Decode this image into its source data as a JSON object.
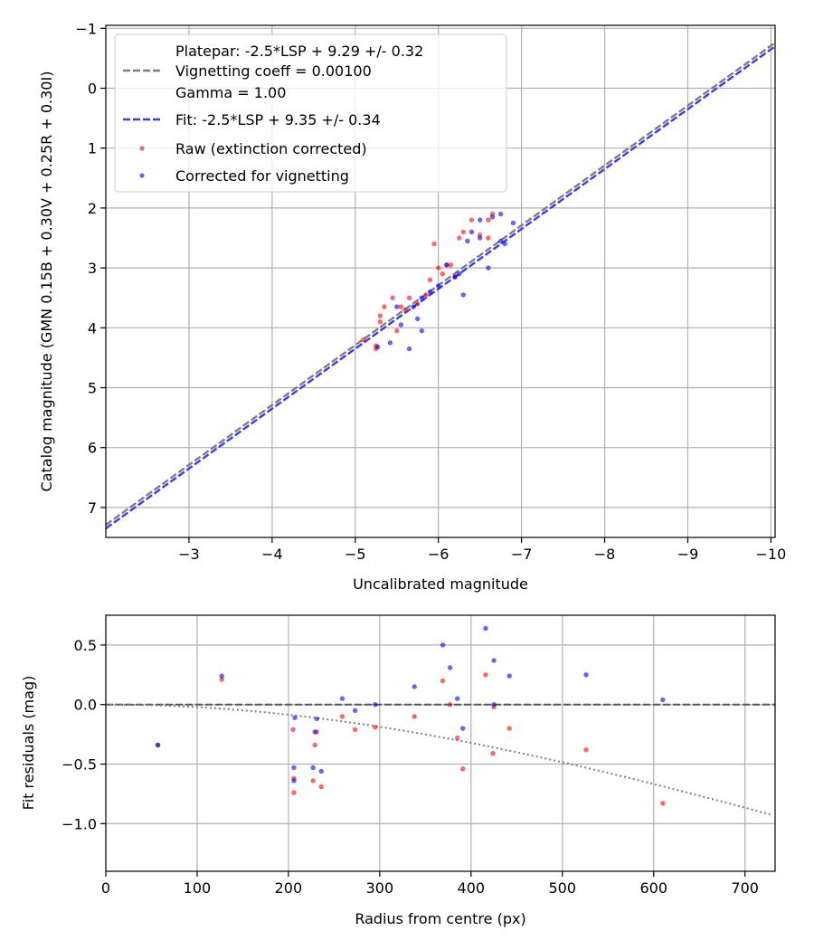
{
  "chart_data": [
    {
      "type": "scatter",
      "xlabel": "Uncalibrated magnitude",
      "ylabel": "Catalog magnitude (GMN 0.15B + 0.30V + 0.25R + 0.30I)",
      "xlim": [
        -2.0,
        -10.05
      ],
      "ylim": [
        7.5,
        -1.05
      ],
      "x_inverted": true,
      "y_inverted": true,
      "xticks": [
        -3,
        -4,
        -5,
        -6,
        -7,
        -8,
        -9,
        -10
      ],
      "xtick_labels": [
        "−3",
        "−4",
        "−5",
        "−6",
        "−7",
        "−8",
        "−9",
        "−10"
      ],
      "yticks": [
        -1,
        0,
        1,
        2,
        3,
        4,
        5,
        6,
        7
      ],
      "ytick_labels": [
        "−1",
        "0",
        "1",
        "2",
        "3",
        "4",
        "5",
        "6",
        "7"
      ],
      "grid": true,
      "legend_position": "upper left",
      "legend": [
        {
          "label": "Platepar: -2.5*LSP + 9.29 +/- 0.32",
          "kind": "blank"
        },
        {
          "label": "Vignetting coeff = 0.00100",
          "kind": "gray-dashed"
        },
        {
          "label": "Gamma = 1.00",
          "kind": "blank"
        },
        {
          "label": "Fit: -2.5*LSP + 9.35 +/- 0.34",
          "kind": "blue-dashed"
        },
        {
          "label": "Raw (extinction corrected)",
          "kind": "red-dot"
        },
        {
          "label": "Corrected for vignetting",
          "kind": "blue-dot"
        }
      ],
      "lines": [
        {
          "style": "gray-dashed",
          "intercept": 9.29,
          "slope": 1.0
        },
        {
          "style": "blue-dashed",
          "intercept": 9.35,
          "slope": 1.0
        }
      ],
      "series": [
        {
          "name": "Raw (extinction corrected)",
          "color": "#ff0000",
          "points": [
            [
              -5.1,
              4.2
            ],
            [
              -5.25,
              4.35
            ],
            [
              -5.3,
              3.9
            ],
            [
              -5.3,
              3.8
            ],
            [
              -5.35,
              3.65
            ],
            [
              -5.45,
              3.5
            ],
            [
              -5.5,
              4.05
            ],
            [
              -5.6,
              3.7
            ],
            [
              -5.65,
              3.5
            ],
            [
              -5.75,
              3.6
            ],
            [
              -5.85,
              3.45
            ],
            [
              -5.9,
              3.2
            ],
            [
              -5.95,
              2.6
            ],
            [
              -6.0,
              3.0
            ],
            [
              -6.05,
              3.1
            ],
            [
              -6.1,
              2.95
            ],
            [
              -6.15,
              2.95
            ],
            [
              -6.25,
              2.5
            ],
            [
              -6.3,
              2.4
            ],
            [
              -6.4,
              2.2
            ],
            [
              -6.5,
              2.45
            ],
            [
              -6.6,
              2.5
            ],
            [
              -6.6,
              2.2
            ],
            [
              -6.65,
              2.1
            ],
            [
              -5.25,
              4.3
            ],
            [
              -5.55,
              3.65
            ],
            [
              -6.2,
              3.15
            ]
          ]
        },
        {
          "name": "Corrected for vignetting",
          "color": "#0000ff",
          "points": [
            [
              -5.27,
              4.32
            ],
            [
              -5.42,
              4.25
            ],
            [
              -5.5,
              3.65
            ],
            [
              -5.55,
              3.95
            ],
            [
              -5.65,
              4.35
            ],
            [
              -5.7,
              3.65
            ],
            [
              -5.75,
              3.85
            ],
            [
              -5.8,
              4.05
            ],
            [
              -5.8,
              3.5
            ],
            [
              -5.9,
              3.4
            ],
            [
              -6.1,
              2.95
            ],
            [
              -6.2,
              3.15
            ],
            [
              -6.25,
              3.1
            ],
            [
              -6.3,
              3.45
            ],
            [
              -6.35,
              2.55
            ],
            [
              -6.4,
              2.4
            ],
            [
              -6.5,
              2.2
            ],
            [
              -6.6,
              3.0
            ],
            [
              -6.65,
              2.15
            ],
            [
              -6.75,
              2.1
            ],
            [
              -6.75,
              2.55
            ],
            [
              -6.8,
              2.6
            ],
            [
              -6.9,
              2.25
            ],
            [
              -6.5,
              2.5
            ],
            [
              -6.0,
              3.3
            ]
          ]
        }
      ]
    },
    {
      "type": "scatter",
      "xlabel": "Radius from centre (px)",
      "ylabel": "Fit residuals (mag)",
      "xlim": [
        0,
        733
      ],
      "ylim": [
        -1.4,
        0.75
      ],
      "xticks": [
        0,
        100,
        200,
        300,
        400,
        500,
        600,
        700
      ],
      "xtick_labels": [
        "0",
        "100",
        "200",
        "300",
        "400",
        "500",
        "600",
        "700"
      ],
      "yticks": [
        0.5,
        0.0,
        -0.5,
        -1.0
      ],
      "ytick_labels": [
        "0.5",
        "0.0",
        "−0.5",
        "−1.0"
      ],
      "grid": true,
      "reference_line": {
        "y": 0.0,
        "style": "gray-dashed"
      },
      "vignetting_curve": {
        "style": "gray-dotted",
        "coeff": 0.001
      },
      "series": [
        {
          "name": "Raw",
          "color": "#ff0000",
          "points": [
            [
              57,
              -0.34
            ],
            [
              127,
              0.21
            ],
            [
              205,
              -0.21
            ],
            [
              206,
              -0.62
            ],
            [
              206,
              -0.74
            ],
            [
              227,
              -0.64
            ],
            [
              229,
              -0.34
            ],
            [
              231,
              -0.23
            ],
            [
              236,
              -0.69
            ],
            [
              259,
              -0.1
            ],
            [
              273,
              -0.21
            ],
            [
              295,
              -0.19
            ],
            [
              338,
              -0.1
            ],
            [
              369,
              0.2
            ],
            [
              377,
              0.0
            ],
            [
              385,
              -0.28
            ],
            [
              391,
              -0.54
            ],
            [
              416,
              0.25
            ],
            [
              424,
              -0.41
            ],
            [
              425,
              -0.02
            ],
            [
              442,
              -0.2
            ],
            [
              526,
              -0.38
            ],
            [
              610,
              -0.83
            ]
          ]
        },
        {
          "name": "Corrected",
          "color": "#0000ff",
          "points": [
            [
              57,
              -0.34
            ],
            [
              127,
              0.24
            ],
            [
              206,
              -0.53
            ],
            [
              206,
              -0.64
            ],
            [
              207,
              -0.11
            ],
            [
              227,
              -0.53
            ],
            [
              229,
              -0.23
            ],
            [
              231,
              -0.12
            ],
            [
              236,
              -0.56
            ],
            [
              259,
              0.05
            ],
            [
              273,
              -0.05
            ],
            [
              295,
              0.0
            ],
            [
              338,
              0.15
            ],
            [
              369,
              0.5
            ],
            [
              377,
              0.31
            ],
            [
              385,
              0.05
            ],
            [
              391,
              -0.2
            ],
            [
              416,
              0.64
            ],
            [
              425,
              0.37
            ],
            [
              425,
              0.0
            ],
            [
              442,
              0.24
            ],
            [
              526,
              0.25
            ],
            [
              610,
              0.04
            ]
          ]
        }
      ]
    }
  ]
}
